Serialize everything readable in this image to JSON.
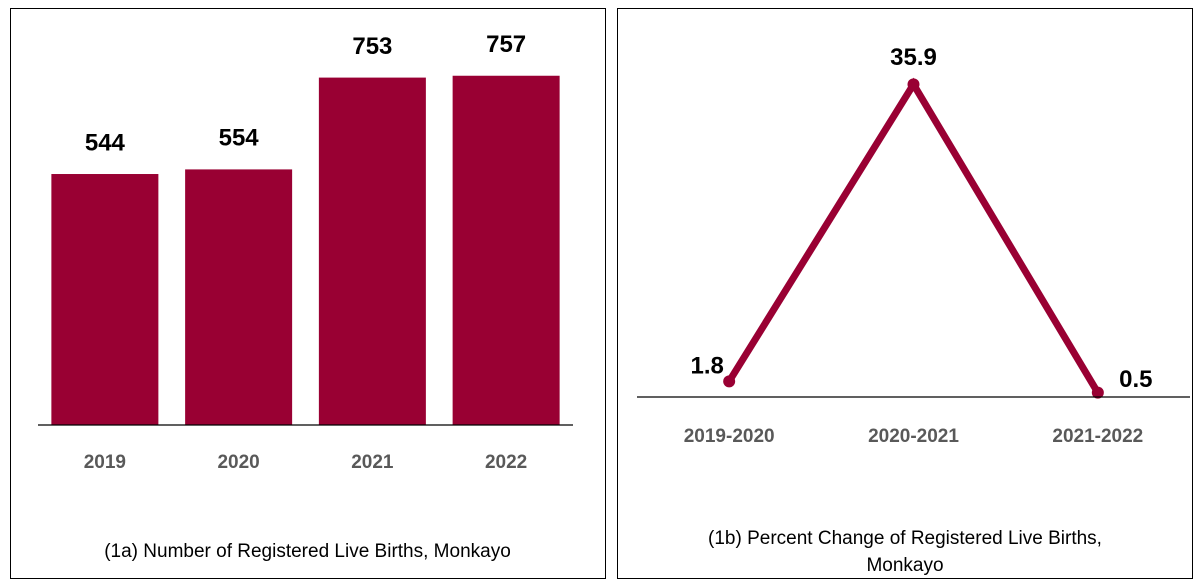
{
  "chart_data": [
    {
      "type": "bar",
      "title": "(1a) Number of Registered Live Births, Monkayo",
      "categories": [
        "2019",
        "2020",
        "2021",
        "2022"
      ],
      "values": [
        544,
        554,
        753,
        757
      ],
      "color": "#990033",
      "ylim": [
        0,
        880
      ]
    },
    {
      "type": "line",
      "title": "(1b) Percent Change of Registered Live Births, Monkayo",
      "categories": [
        "2019-2020",
        "2020-2021",
        "2021-2022"
      ],
      "values": [
        1.8,
        35.9,
        0.5
      ],
      "color": "#990033",
      "ylim": [
        0,
        41
      ]
    }
  ]
}
